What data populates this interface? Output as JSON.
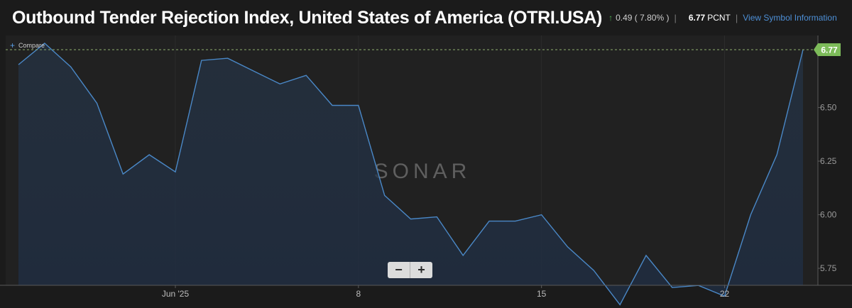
{
  "header": {
    "title": "Outbound Tender Rejection Index, United States of America (OTRI.USA)",
    "change": "0.49 ( 7.80% )",
    "value": "6.77",
    "unit": "PCNT",
    "link": "View Symbol Information"
  },
  "compare_label": "Compare",
  "watermark": "SONAR",
  "zoom": {
    "minus": "−",
    "plus": "+"
  },
  "colors": {
    "line": "#4a88c7",
    "accent": "#4caf50",
    "background": "#1b1b1b"
  },
  "chart_data": {
    "type": "area",
    "x": [
      "2025-05-26",
      "2025-05-27",
      "2025-05-28",
      "2025-05-29",
      "2025-05-30",
      "2025-05-31",
      "2025-06-01",
      "2025-06-02",
      "2025-06-03",
      "2025-06-04",
      "2025-06-05",
      "2025-06-06",
      "2025-06-07",
      "2025-06-08",
      "2025-06-09",
      "2025-06-10",
      "2025-06-11",
      "2025-06-12",
      "2025-06-13",
      "2025-06-14",
      "2025-06-15",
      "2025-06-16",
      "2025-06-17",
      "2025-06-18",
      "2025-06-19",
      "2025-06-20",
      "2025-06-21",
      "2025-06-22",
      "2025-06-23",
      "2025-06-24",
      "2025-06-25"
    ],
    "values": [
      6.7,
      6.8,
      6.69,
      6.52,
      6.19,
      6.28,
      6.2,
      6.72,
      6.73,
      6.67,
      6.61,
      6.65,
      6.51,
      6.51,
      6.09,
      5.98,
      5.99,
      5.81,
      5.97,
      5.97,
      6.0,
      5.85,
      5.74,
      5.58,
      5.81,
      5.66,
      5.67,
      5.62,
      6.0,
      6.28,
      6.77
    ],
    "ylim": [
      5.55,
      6.83
    ],
    "yticks": [
      "5.75",
      "6.00",
      "6.25",
      "6.50"
    ],
    "xticks": [
      {
        "date": "2025-06-01",
        "label": "Jun '25"
      },
      {
        "date": "2025-06-08",
        "label": "8"
      },
      {
        "date": "2025-06-15",
        "label": "15"
      },
      {
        "date": "2025-06-22",
        "label": "22"
      }
    ],
    "last_value_label": "6.77"
  }
}
